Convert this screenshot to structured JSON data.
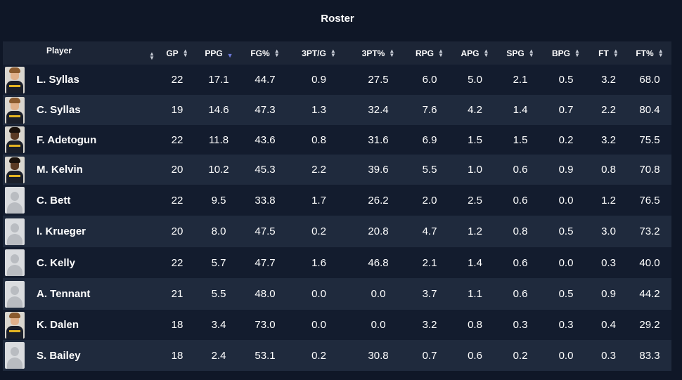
{
  "title": "Roster",
  "columns": [
    {
      "label": "Player",
      "sort": "none"
    },
    {
      "label": "GP",
      "sort": "none"
    },
    {
      "label": "PPG",
      "sort": "descending"
    },
    {
      "label": "FG%",
      "sort": "none"
    },
    {
      "label": "3PT/G",
      "sort": "none"
    },
    {
      "label": "3PT%",
      "sort": "none"
    },
    {
      "label": "RPG",
      "sort": "none"
    },
    {
      "label": "APG",
      "sort": "none"
    },
    {
      "label": "SPG",
      "sort": "none"
    },
    {
      "label": "BPG",
      "sort": "none"
    },
    {
      "label": "FT",
      "sort": "none"
    },
    {
      "label": "FT%",
      "sort": "none"
    }
  ],
  "icons": {
    "sort": "sort-icon",
    "avatar": "player-avatar-icon"
  },
  "colors": {
    "background": "#0f1727",
    "header_row": "#1c2536",
    "row": "#131c2e",
    "row_alt": "#1f2a3d",
    "sort_active": "#6d79d8"
  },
  "rows": [
    {
      "photo": "light",
      "name": "L. Syllas",
      "gp": "22",
      "ppg": "17.1",
      "fg_pct": "44.7",
      "tpg": "0.9",
      "tp_pct": "27.5",
      "rpg": "6.0",
      "apg": "5.0",
      "spg": "2.1",
      "bpg": "0.5",
      "ft": "3.2",
      "ft_pct": "68.0"
    },
    {
      "photo": "light",
      "name": "C. Syllas",
      "gp": "19",
      "ppg": "14.6",
      "fg_pct": "47.3",
      "tpg": "1.3",
      "tp_pct": "32.4",
      "rpg": "7.6",
      "apg": "4.2",
      "spg": "1.4",
      "bpg": "0.7",
      "ft": "2.2",
      "ft_pct": "80.4"
    },
    {
      "photo": "dark",
      "name": "F. Adetogun",
      "gp": "22",
      "ppg": "11.8",
      "fg_pct": "43.6",
      "tpg": "0.8",
      "tp_pct": "31.6",
      "rpg": "6.9",
      "apg": "1.5",
      "spg": "1.5",
      "bpg": "0.2",
      "ft": "3.2",
      "ft_pct": "75.5"
    },
    {
      "photo": "dark",
      "name": "M. Kelvin",
      "gp": "20",
      "ppg": "10.2",
      "fg_pct": "45.3",
      "tpg": "2.2",
      "tp_pct": "39.6",
      "rpg": "5.5",
      "apg": "1.0",
      "spg": "0.6",
      "bpg": "0.9",
      "ft": "0.8",
      "ft_pct": "70.8"
    },
    {
      "photo": "none",
      "name": "C. Bett",
      "gp": "22",
      "ppg": "9.5",
      "fg_pct": "33.8",
      "tpg": "1.7",
      "tp_pct": "26.2",
      "rpg": "2.0",
      "apg": "2.5",
      "spg": "0.6",
      "bpg": "0.0",
      "ft": "1.2",
      "ft_pct": "76.5"
    },
    {
      "photo": "none",
      "name": "I. Krueger",
      "gp": "20",
      "ppg": "8.0",
      "fg_pct": "47.5",
      "tpg": "0.2",
      "tp_pct": "20.8",
      "rpg": "4.7",
      "apg": "1.2",
      "spg": "0.8",
      "bpg": "0.5",
      "ft": "3.0",
      "ft_pct": "73.2"
    },
    {
      "photo": "none",
      "name": "C. Kelly",
      "gp": "22",
      "ppg": "5.7",
      "fg_pct": "47.7",
      "tpg": "1.6",
      "tp_pct": "46.8",
      "rpg": "2.1",
      "apg": "1.4",
      "spg": "0.6",
      "bpg": "0.0",
      "ft": "0.3",
      "ft_pct": "40.0"
    },
    {
      "photo": "none",
      "name": "A. Tennant",
      "gp": "21",
      "ppg": "5.5",
      "fg_pct": "48.0",
      "tpg": "0.0",
      "tp_pct": "0.0",
      "rpg": "3.7",
      "apg": "1.1",
      "spg": "0.6",
      "bpg": "0.5",
      "ft": "0.9",
      "ft_pct": "44.2"
    },
    {
      "photo": "light",
      "name": "K. Dalen",
      "gp": "18",
      "ppg": "3.4",
      "fg_pct": "73.0",
      "tpg": "0.0",
      "tp_pct": "0.0",
      "rpg": "3.2",
      "apg": "0.8",
      "spg": "0.3",
      "bpg": "0.3",
      "ft": "0.4",
      "ft_pct": "29.2"
    },
    {
      "photo": "none",
      "name": "S. Bailey",
      "gp": "18",
      "ppg": "2.4",
      "fg_pct": "53.1",
      "tpg": "0.2",
      "tp_pct": "30.8",
      "rpg": "0.7",
      "apg": "0.6",
      "spg": "0.2",
      "bpg": "0.0",
      "ft": "0.3",
      "ft_pct": "83.3"
    }
  ]
}
